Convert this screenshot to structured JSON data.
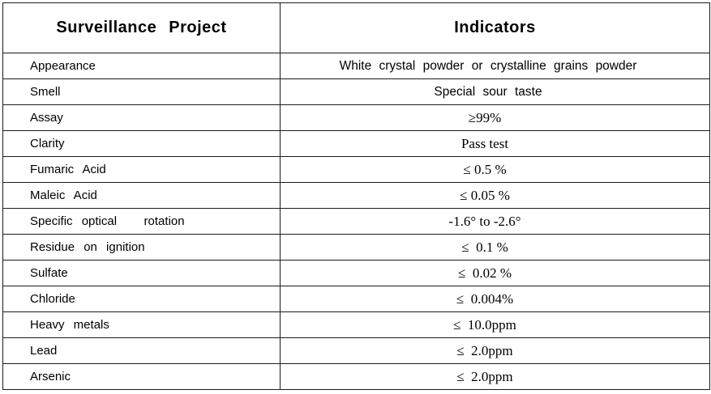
{
  "page": {
    "background_color": "#ffffff",
    "border_color": "#1b1b1b",
    "text_color": "#000000"
  },
  "table": {
    "header": {
      "project": "Surveillance Project",
      "indicators": "Indicators"
    },
    "rows": [
      {
        "project": "Appearance",
        "indicator": "White crystal powder or crystalline grains powder"
      },
      {
        "project": "Smell",
        "indicator": "Special sour taste"
      },
      {
        "project": "Assay",
        "indicator": "≥99%"
      },
      {
        "project": "Clarity",
        "indicator": "Pass test"
      },
      {
        "project": "Fumaric Acid",
        "indicator": "≤ 0.5 %"
      },
      {
        "project": "Maleic Acid",
        "indicator": "≤ 0.05 %"
      },
      {
        "project": "Specific optical   rotation",
        "indicator": "-1.6° to -2.6°"
      },
      {
        "project": "Residue on ignition",
        "indicator": "≤  0.1 %"
      },
      {
        "project": "Sulfate",
        "indicator": "≤  0.02 %"
      },
      {
        "project": "Chloride",
        "indicator": "≤  0.004%"
      },
      {
        "project": "Heavy metals",
        "indicator": "≤  10.0ppm"
      },
      {
        "project": "Lead",
        "indicator": "≤  2.0ppm"
      },
      {
        "project": "Arsenic",
        "indicator": "≤  2.0ppm"
      }
    ]
  }
}
